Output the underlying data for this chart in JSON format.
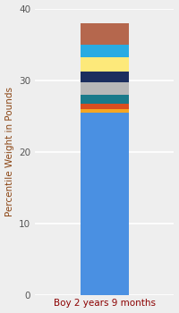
{
  "category": "Boy 2 years 9 months",
  "segments": [
    {
      "label": "base_blue",
      "value": 25.5,
      "color": "#4a90e2"
    },
    {
      "label": "orange",
      "value": 0.4,
      "color": "#f5a623"
    },
    {
      "label": "red",
      "value": 0.8,
      "color": "#d94e1f"
    },
    {
      "label": "teal",
      "value": 1.2,
      "color": "#1a7a8a"
    },
    {
      "label": "gray",
      "value": 1.8,
      "color": "#b8b8b8"
    },
    {
      "label": "navy",
      "value": 1.5,
      "color": "#1c2e5e"
    },
    {
      "label": "yellow",
      "value": 2.0,
      "color": "#fde97a"
    },
    {
      "label": "cyan",
      "value": 1.8,
      "color": "#29abe2"
    },
    {
      "label": "brown",
      "value": 3.0,
      "color": "#b5674d"
    }
  ],
  "ylabel": "Percentile Weight in Pounds",
  "ylim": [
    0,
    40
  ],
  "yticks": [
    0,
    10,
    20,
    30,
    40
  ],
  "background_color": "#eeeeee",
  "bar_width": 0.35,
  "xlabel_fontsize": 7.5,
  "ylabel_fontsize": 7.5,
  "tick_fontsize": 7.5,
  "xlabel_color": "#8B0000",
  "ylabel_color": "#8B4513",
  "tick_color": "#555555"
}
